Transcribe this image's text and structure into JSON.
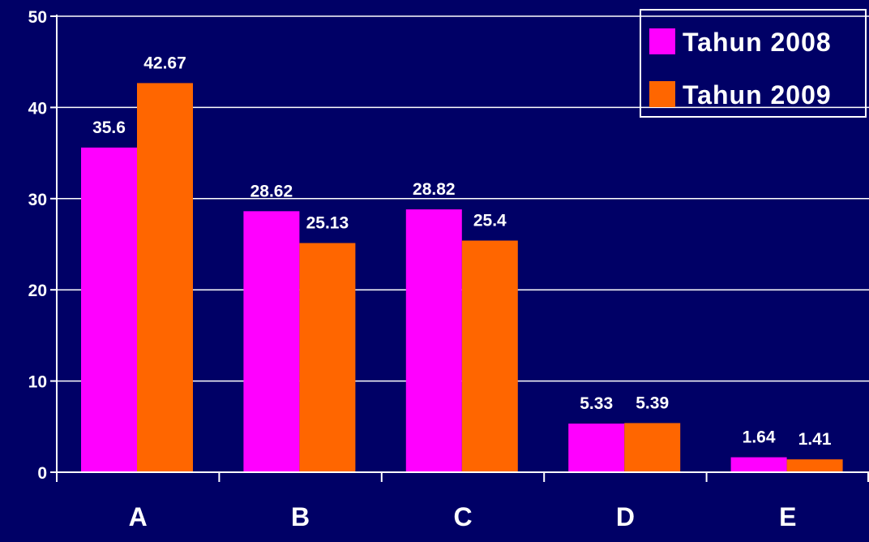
{
  "chart_data": {
    "type": "bar",
    "title": "",
    "xlabel": "",
    "ylabel": "",
    "categories": [
      "A",
      "B",
      "C",
      "D",
      "E"
    ],
    "series": [
      {
        "name": "Tahun 2008",
        "color": "#ff00ff",
        "values": [
          35.6,
          28.62,
          28.82,
          5.33,
          1.64
        ],
        "labels": [
          "35.6",
          "28.62",
          "28.82",
          "5.33",
          "1.64"
        ]
      },
      {
        "name": "Tahun 2009",
        "color": "#ff6600",
        "values": [
          42.67,
          25.13,
          25.4,
          5.39,
          1.41
        ],
        "labels": [
          "42.67",
          "25.13",
          "25.4",
          "5.39",
          "1.41"
        ]
      }
    ],
    "ylim": [
      0,
      50
    ],
    "yticks": [
      "0",
      "10",
      "20",
      "30",
      "40",
      "50"
    ],
    "grid": true,
    "legend_position": "top-right",
    "colors": {
      "background": "#000066",
      "grid": "#ffffff",
      "axis": "#ffffff",
      "text": "#ffffff"
    }
  }
}
